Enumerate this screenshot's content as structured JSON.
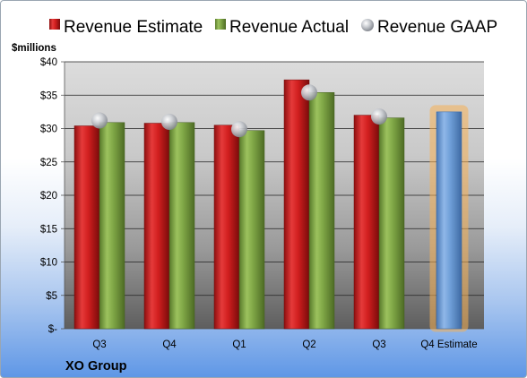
{
  "company": "XO Group",
  "legend": [
    {
      "name": "Revenue Estimate",
      "color": "#d21f1f"
    },
    {
      "name": "Revenue Actual",
      "color": "#7fa646"
    },
    {
      "name": "Revenue GAAP",
      "color": "#b9bcc2"
    }
  ],
  "chart_data": {
    "type": "bar",
    "ylabel": "$millions",
    "ylim": [
      0,
      40
    ],
    "yticks": [
      0,
      5,
      10,
      15,
      20,
      25,
      30,
      35,
      40
    ],
    "ytick_labels": [
      "$-",
      "$5",
      "$10",
      "$15",
      "$20",
      "$25",
      "$30",
      "$35",
      "$40"
    ],
    "categories": [
      "Q3",
      "Q4",
      "Q1",
      "Q2",
      "Q3",
      "Q4 Estimate"
    ],
    "series": [
      {
        "name": "Revenue Estimate",
        "color": "#d21f1f",
        "values": [
          30.4,
          30.8,
          30.5,
          37.3,
          32.0,
          null
        ]
      },
      {
        "name": "Revenue Actual",
        "color": "#7fa646",
        "values": [
          30.9,
          30.9,
          29.7,
          35.4,
          31.6,
          null
        ]
      },
      {
        "name": "Revenue GAAP",
        "color": "#b9bcc2",
        "values": [
          31.2,
          31.0,
          29.9,
          35.4,
          31.8,
          null
        ]
      },
      {
        "name": "Q4 Estimate",
        "color": "#6f9fd8",
        "highlight": "#f5b155",
        "values": [
          null,
          null,
          null,
          null,
          null,
          32.5
        ]
      }
    ],
    "grid": true
  }
}
